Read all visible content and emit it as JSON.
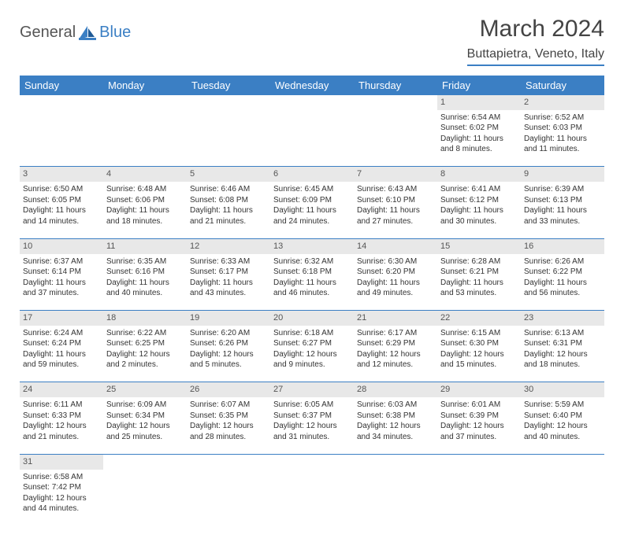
{
  "logo": {
    "text1": "General",
    "text2": "Blue"
  },
  "title": "March 2024",
  "location": "Buttapietra, Veneto, Italy",
  "colors": {
    "header_bg": "#3b7fc4",
    "header_text": "#ffffff",
    "daynum_bg": "#e8e8e8",
    "border": "#3b7fc4",
    "text": "#333333",
    "page_bg": "#ffffff"
  },
  "fonts": {
    "title_size": 30,
    "location_size": 16,
    "th_size": 13,
    "cell_size": 10
  },
  "weekdays": [
    "Sunday",
    "Monday",
    "Tuesday",
    "Wednesday",
    "Thursday",
    "Friday",
    "Saturday"
  ],
  "weeks": [
    {
      "nums": [
        "",
        "",
        "",
        "",
        "",
        "1",
        "2"
      ],
      "cells": [
        null,
        null,
        null,
        null,
        null,
        {
          "sunrise": "Sunrise: 6:54 AM",
          "sunset": "Sunset: 6:02 PM",
          "daylight": "Daylight: 11 hours and 8 minutes."
        },
        {
          "sunrise": "Sunrise: 6:52 AM",
          "sunset": "Sunset: 6:03 PM",
          "daylight": "Daylight: 11 hours and 11 minutes."
        }
      ]
    },
    {
      "nums": [
        "3",
        "4",
        "5",
        "6",
        "7",
        "8",
        "9"
      ],
      "cells": [
        {
          "sunrise": "Sunrise: 6:50 AM",
          "sunset": "Sunset: 6:05 PM",
          "daylight": "Daylight: 11 hours and 14 minutes."
        },
        {
          "sunrise": "Sunrise: 6:48 AM",
          "sunset": "Sunset: 6:06 PM",
          "daylight": "Daylight: 11 hours and 18 minutes."
        },
        {
          "sunrise": "Sunrise: 6:46 AM",
          "sunset": "Sunset: 6:08 PM",
          "daylight": "Daylight: 11 hours and 21 minutes."
        },
        {
          "sunrise": "Sunrise: 6:45 AM",
          "sunset": "Sunset: 6:09 PM",
          "daylight": "Daylight: 11 hours and 24 minutes."
        },
        {
          "sunrise": "Sunrise: 6:43 AM",
          "sunset": "Sunset: 6:10 PM",
          "daylight": "Daylight: 11 hours and 27 minutes."
        },
        {
          "sunrise": "Sunrise: 6:41 AM",
          "sunset": "Sunset: 6:12 PM",
          "daylight": "Daylight: 11 hours and 30 minutes."
        },
        {
          "sunrise": "Sunrise: 6:39 AM",
          "sunset": "Sunset: 6:13 PM",
          "daylight": "Daylight: 11 hours and 33 minutes."
        }
      ]
    },
    {
      "nums": [
        "10",
        "11",
        "12",
        "13",
        "14",
        "15",
        "16"
      ],
      "cells": [
        {
          "sunrise": "Sunrise: 6:37 AM",
          "sunset": "Sunset: 6:14 PM",
          "daylight": "Daylight: 11 hours and 37 minutes."
        },
        {
          "sunrise": "Sunrise: 6:35 AM",
          "sunset": "Sunset: 6:16 PM",
          "daylight": "Daylight: 11 hours and 40 minutes."
        },
        {
          "sunrise": "Sunrise: 6:33 AM",
          "sunset": "Sunset: 6:17 PM",
          "daylight": "Daylight: 11 hours and 43 minutes."
        },
        {
          "sunrise": "Sunrise: 6:32 AM",
          "sunset": "Sunset: 6:18 PM",
          "daylight": "Daylight: 11 hours and 46 minutes."
        },
        {
          "sunrise": "Sunrise: 6:30 AM",
          "sunset": "Sunset: 6:20 PM",
          "daylight": "Daylight: 11 hours and 49 minutes."
        },
        {
          "sunrise": "Sunrise: 6:28 AM",
          "sunset": "Sunset: 6:21 PM",
          "daylight": "Daylight: 11 hours and 53 minutes."
        },
        {
          "sunrise": "Sunrise: 6:26 AM",
          "sunset": "Sunset: 6:22 PM",
          "daylight": "Daylight: 11 hours and 56 minutes."
        }
      ]
    },
    {
      "nums": [
        "17",
        "18",
        "19",
        "20",
        "21",
        "22",
        "23"
      ],
      "cells": [
        {
          "sunrise": "Sunrise: 6:24 AM",
          "sunset": "Sunset: 6:24 PM",
          "daylight": "Daylight: 11 hours and 59 minutes."
        },
        {
          "sunrise": "Sunrise: 6:22 AM",
          "sunset": "Sunset: 6:25 PM",
          "daylight": "Daylight: 12 hours and 2 minutes."
        },
        {
          "sunrise": "Sunrise: 6:20 AM",
          "sunset": "Sunset: 6:26 PM",
          "daylight": "Daylight: 12 hours and 5 minutes."
        },
        {
          "sunrise": "Sunrise: 6:18 AM",
          "sunset": "Sunset: 6:27 PM",
          "daylight": "Daylight: 12 hours and 9 minutes."
        },
        {
          "sunrise": "Sunrise: 6:17 AM",
          "sunset": "Sunset: 6:29 PM",
          "daylight": "Daylight: 12 hours and 12 minutes."
        },
        {
          "sunrise": "Sunrise: 6:15 AM",
          "sunset": "Sunset: 6:30 PM",
          "daylight": "Daylight: 12 hours and 15 minutes."
        },
        {
          "sunrise": "Sunrise: 6:13 AM",
          "sunset": "Sunset: 6:31 PM",
          "daylight": "Daylight: 12 hours and 18 minutes."
        }
      ]
    },
    {
      "nums": [
        "24",
        "25",
        "26",
        "27",
        "28",
        "29",
        "30"
      ],
      "cells": [
        {
          "sunrise": "Sunrise: 6:11 AM",
          "sunset": "Sunset: 6:33 PM",
          "daylight": "Daylight: 12 hours and 21 minutes."
        },
        {
          "sunrise": "Sunrise: 6:09 AM",
          "sunset": "Sunset: 6:34 PM",
          "daylight": "Daylight: 12 hours and 25 minutes."
        },
        {
          "sunrise": "Sunrise: 6:07 AM",
          "sunset": "Sunset: 6:35 PM",
          "daylight": "Daylight: 12 hours and 28 minutes."
        },
        {
          "sunrise": "Sunrise: 6:05 AM",
          "sunset": "Sunset: 6:37 PM",
          "daylight": "Daylight: 12 hours and 31 minutes."
        },
        {
          "sunrise": "Sunrise: 6:03 AM",
          "sunset": "Sunset: 6:38 PM",
          "daylight": "Daylight: 12 hours and 34 minutes."
        },
        {
          "sunrise": "Sunrise: 6:01 AM",
          "sunset": "Sunset: 6:39 PM",
          "daylight": "Daylight: 12 hours and 37 minutes."
        },
        {
          "sunrise": "Sunrise: 5:59 AM",
          "sunset": "Sunset: 6:40 PM",
          "daylight": "Daylight: 12 hours and 40 minutes."
        }
      ]
    },
    {
      "nums": [
        "31",
        "",
        "",
        "",
        "",
        "",
        ""
      ],
      "cells": [
        {
          "sunrise": "Sunrise: 6:58 AM",
          "sunset": "Sunset: 7:42 PM",
          "daylight": "Daylight: 12 hours and 44 minutes."
        },
        null,
        null,
        null,
        null,
        null,
        null
      ]
    }
  ]
}
